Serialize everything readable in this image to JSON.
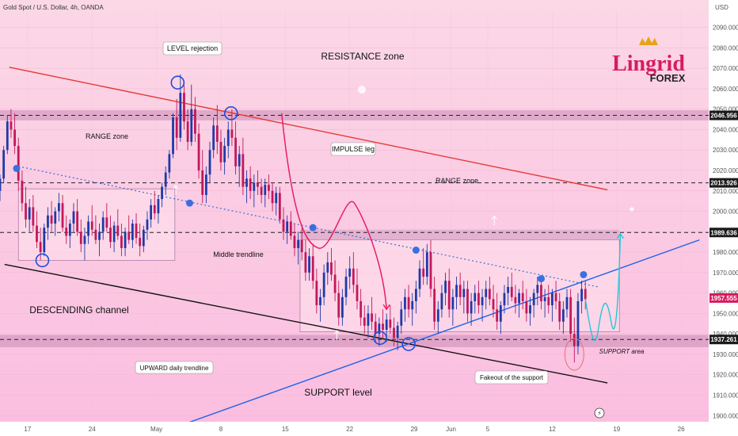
{
  "header": {
    "symbol_title": "Gold Spot / U.S. Dollar, 4h, OANDA",
    "currency": "USD"
  },
  "brand": {
    "name": "Lingrid",
    "sub": "FOREX",
    "crown_color": "#e8a317",
    "color": "#d81b60"
  },
  "colors": {
    "bull": "#1e3aa8",
    "bear": "#c2185b",
    "resistance": "#e53935",
    "upward": "#1e63e9",
    "descending": "#111111",
    "middle": "#3b6fd8",
    "impulse": "#e91e63",
    "projection": "#26c6da"
  },
  "chart_data": {
    "type": "candlestick",
    "symbol": "XAUUSD",
    "timeframe": "4h",
    "y_axis": {
      "ticks": [
        2090,
        2080,
        2070,
        2060,
        2050,
        2040,
        2030,
        2020,
        2010,
        2000,
        1990,
        1980,
        1970,
        1960,
        1950,
        1940,
        1930,
        1920,
        1910,
        1900
      ],
      "tick_labels": [
        "2090.000",
        "2080.000",
        "2070.000",
        "2060.000",
        "2050.000",
        "2040.000",
        "2030.000",
        "2020.000",
        "2010.000",
        "2000.000",
        "1990.000",
        "1980.000",
        "1970.000",
        "1960.000",
        "1950.000",
        "1940.000",
        "1930.000",
        "1920.000",
        "1910.000",
        "1900.000"
      ],
      "range": [
        1897,
        2098
      ]
    },
    "x_axis": {
      "ticks": [
        {
          "label": "17",
          "x": 17
        },
        {
          "label": "24",
          "x": 24
        },
        {
          "label": "May",
          "x": 31
        },
        {
          "label": "8",
          "x": 38
        },
        {
          "label": "15",
          "x": 45
        },
        {
          "label": "22",
          "x": 52
        },
        {
          "label": "29",
          "x": 59
        },
        {
          "label": "Jun",
          "x": 63
        },
        {
          "label": "5",
          "x": 67
        },
        {
          "label": "12",
          "x": 74
        },
        {
          "label": "19",
          "x": 81
        },
        {
          "label": "26",
          "x": 88
        }
      ],
      "range": [
        14,
        91
      ]
    },
    "price_tags": [
      {
        "value": 2046.956,
        "label": "2046.956",
        "style": "dark"
      },
      {
        "value": 2013.926,
        "label": "2013.926",
        "style": "dark"
      },
      {
        "value": 1989.636,
        "label": "1989.636",
        "style": "dark"
      },
      {
        "value": 1957.555,
        "label": "1957.555",
        "style": "current"
      },
      {
        "value": 1937.261,
        "label": "1937.261",
        "style": "dark"
      }
    ],
    "h_levels": [
      2046.956,
      2013.926,
      1989.636,
      1937.261
    ],
    "zones": [
      {
        "name": "resistance-band",
        "x0": 14,
        "x1": 91,
        "y0": 2044.5,
        "y1": 2049.5
      },
      {
        "name": "support-band",
        "x0": 14,
        "x1": 91,
        "y0": 1933.5,
        "y1": 1939.5
      },
      {
        "name": "range-box-1",
        "x0": 16,
        "x1": 33,
        "y0": 1976,
        "y1": 2011
      },
      {
        "name": "range-box-2",
        "x0": 46.6,
        "x1": 81.3,
        "y0": 1941,
        "y1": 1986
      },
      {
        "name": "range-top-strip",
        "x0": 46.6,
        "x1": 81.3,
        "y0": 1986,
        "y1": 1991
      }
    ],
    "lines": [
      {
        "name": "resistance-line",
        "x0": 15,
        "y0": 2070.5,
        "x1": 80,
        "y1": 2010.5,
        "color": "resistance"
      },
      {
        "name": "descending-channel-line",
        "x0": 14.5,
        "y0": 1974,
        "x1": 80,
        "y1": 1916,
        "color": "descending"
      },
      {
        "name": "upward-trendline",
        "x0": 31,
        "y0": 1891,
        "x1": 90,
        "y1": 1986,
        "color": "upward"
      },
      {
        "name": "middle-trendline",
        "x0": 16,
        "y0": 2022,
        "x1": 79,
        "y1": 1963,
        "color": "middle",
        "dash": true
      }
    ],
    "candles": [
      [
        14.0,
        2010,
        2018,
        2005,
        2016
      ],
      [
        14.4,
        2016,
        2032,
        2014,
        2030
      ],
      [
        14.8,
        2030,
        2047,
        2028,
        2044
      ],
      [
        15.2,
        2044,
        2050,
        2036,
        2040
      ],
      [
        15.6,
        2040,
        2048,
        2028,
        2032
      ],
      [
        16.0,
        2032,
        2036,
        2010,
        2015
      ],
      [
        16.4,
        2015,
        2020,
        2000,
        2004
      ],
      [
        16.8,
        2004,
        2012,
        1992,
        1996
      ],
      [
        17.2,
        1996,
        2006,
        1990,
        2002
      ],
      [
        17.6,
        2002,
        2008,
        1990,
        1993
      ],
      [
        18.0,
        1993,
        2000,
        1982,
        1985
      ],
      [
        18.4,
        1985,
        1992,
        1976,
        1980
      ],
      [
        18.8,
        1980,
        1994,
        1978,
        1992
      ],
      [
        19.2,
        1992,
        2002,
        1986,
        1998
      ],
      [
        19.6,
        1998,
        2005,
        1990,
        1994
      ],
      [
        20.0,
        1994,
        2002,
        1988,
        2000
      ],
      [
        20.4,
        2000,
        2009,
        1995,
        2004
      ],
      [
        20.8,
        2004,
        2008,
        1990,
        1992
      ],
      [
        21.2,
        1992,
        1998,
        1984,
        1988
      ],
      [
        21.6,
        1988,
        1996,
        1982,
        1994
      ],
      [
        22.0,
        1994,
        2004,
        1990,
        2000
      ],
      [
        22.4,
        2000,
        2006,
        1988,
        1990
      ],
      [
        22.8,
        1990,
        1996,
        1980,
        1984
      ],
      [
        23.2,
        1984,
        1992,
        1976,
        1988
      ],
      [
        23.6,
        1988,
        1998,
        1984,
        1995
      ],
      [
        24.0,
        1995,
        2003,
        1988,
        1991
      ],
      [
        24.4,
        1991,
        1998,
        1984,
        1986
      ],
      [
        24.8,
        1986,
        1994,
        1978,
        1990
      ],
      [
        25.2,
        1990,
        2000,
        1986,
        1997
      ],
      [
        25.6,
        1997,
        2004,
        1990,
        1992
      ],
      [
        26.0,
        1992,
        1998,
        1982,
        1985
      ],
      [
        26.4,
        1985,
        1995,
        1980,
        1993
      ],
      [
        26.8,
        1993,
        2001,
        1986,
        1988
      ],
      [
        27.2,
        1988,
        1994,
        1978,
        1982
      ],
      [
        27.6,
        1982,
        1992,
        1978,
        1990
      ],
      [
        28.0,
        1990,
        1998,
        1984,
        1986
      ],
      [
        28.4,
        1986,
        1996,
        1982,
        1994
      ],
      [
        28.8,
        1994,
        1999,
        1984,
        1987
      ],
      [
        29.2,
        1987,
        1994,
        1978,
        1983
      ],
      [
        29.6,
        1983,
        1993,
        1980,
        1991
      ],
      [
        30.0,
        1991,
        2000,
        1986,
        1996
      ],
      [
        30.4,
        1996,
        2006,
        1992,
        2003
      ],
      [
        30.8,
        2003,
        2010,
        1996,
        1999
      ],
      [
        31.2,
        1999,
        2008,
        1994,
        2006
      ],
      [
        31.6,
        2006,
        2014,
        2002,
        2012
      ],
      [
        32.0,
        2012,
        2022,
        2008,
        2019
      ],
      [
        32.4,
        2019,
        2030,
        2016,
        2028
      ],
      [
        32.8,
        2028,
        2048,
        2026,
        2046
      ],
      [
        33.2,
        2046,
        2055,
        2030,
        2036
      ],
      [
        33.6,
        2036,
        2067,
        2034,
        2058
      ],
      [
        34.0,
        2058,
        2064,
        2040,
        2044
      ],
      [
        34.4,
        2044,
        2050,
        2030,
        2034
      ],
      [
        34.8,
        2034,
        2062,
        2032,
        2050
      ],
      [
        35.2,
        2050,
        2056,
        2034,
        2038
      ],
      [
        35.6,
        2038,
        2043,
        2016,
        2020
      ],
      [
        36.0,
        2020,
        2030,
        2004,
        2008
      ],
      [
        36.4,
        2008,
        2022,
        2004,
        2018
      ],
      [
        36.8,
        2018,
        2034,
        2014,
        2030
      ],
      [
        37.2,
        2030,
        2046,
        2026,
        2042
      ],
      [
        37.6,
        2042,
        2052,
        2028,
        2034
      ],
      [
        38.0,
        2034,
        2040,
        2020,
        2024
      ],
      [
        38.4,
        2024,
        2036,
        2018,
        2032
      ],
      [
        38.8,
        2032,
        2044,
        2026,
        2040
      ],
      [
        39.2,
        2040,
        2050,
        2032,
        2036
      ],
      [
        39.6,
        2036,
        2044,
        2018,
        2022
      ],
      [
        40.0,
        2022,
        2032,
        2012,
        2028
      ],
      [
        40.4,
        2028,
        2036,
        2008,
        2012
      ],
      [
        40.8,
        2012,
        2020,
        2004,
        2016
      ],
      [
        41.2,
        2016,
        2022,
        2006,
        2010
      ],
      [
        41.6,
        2010,
        2018,
        2002,
        2014
      ],
      [
        42.0,
        2014,
        2020,
        2008,
        2012
      ],
      [
        42.4,
        2012,
        2016,
        2004,
        2008
      ],
      [
        42.8,
        2008,
        2016,
        2002,
        2013
      ],
      [
        43.2,
        2013,
        2018,
        2006,
        2010
      ],
      [
        43.6,
        2010,
        2014,
        2000,
        2004
      ],
      [
        44.0,
        2004,
        2012,
        1998,
        2009
      ],
      [
        44.4,
        2009,
        2012,
        1994,
        1996
      ],
      [
        44.8,
        1996,
        2002,
        1986,
        1990
      ],
      [
        45.2,
        1990,
        1998,
        1984,
        1995
      ],
      [
        45.6,
        1995,
        2000,
        1986,
        1988
      ],
      [
        46.0,
        1988,
        1994,
        1978,
        1982
      ],
      [
        46.4,
        1982,
        1990,
        1974,
        1986
      ],
      [
        46.8,
        1986,
        1992,
        1976,
        1980
      ],
      [
        47.2,
        1980,
        1986,
        1966,
        1970
      ],
      [
        47.6,
        1970,
        1982,
        1966,
        1978
      ],
      [
        48.0,
        1978,
        1984,
        1962,
        1966
      ],
      [
        48.4,
        1966,
        1972,
        1950,
        1954
      ],
      [
        48.8,
        1954,
        1962,
        1946,
        1958
      ],
      [
        49.2,
        1958,
        1974,
        1954,
        1970
      ],
      [
        49.6,
        1970,
        1980,
        1964,
        1975
      ],
      [
        50.0,
        1975,
        1982,
        1966,
        1969
      ],
      [
        50.4,
        1969,
        1976,
        1956,
        1960
      ],
      [
        50.8,
        1960,
        1966,
        1944,
        1948
      ],
      [
        51.2,
        1948,
        1962,
        1944,
        1958
      ],
      [
        51.6,
        1958,
        1972,
        1954,
        1968
      ],
      [
        52.0,
        1968,
        1978,
        1962,
        1972
      ],
      [
        52.4,
        1972,
        1980,
        1960,
        1964
      ],
      [
        52.8,
        1964,
        1972,
        1952,
        1956
      ],
      [
        53.2,
        1956,
        1962,
        1944,
        1948
      ],
      [
        53.6,
        1948,
        1954,
        1940,
        1944
      ],
      [
        54.0,
        1944,
        1954,
        1938,
        1950
      ],
      [
        54.4,
        1950,
        1958,
        1942,
        1946
      ],
      [
        54.8,
        1946,
        1950,
        1936,
        1940
      ],
      [
        55.2,
        1940,
        1948,
        1934,
        1945
      ],
      [
        55.6,
        1945,
        1952,
        1938,
        1942
      ],
      [
        56.0,
        1942,
        1950,
        1936,
        1947
      ],
      [
        56.4,
        1947,
        1954,
        1940,
        1943
      ],
      [
        56.8,
        1943,
        1948,
        1934,
        1938
      ],
      [
        57.2,
        1938,
        1946,
        1932,
        1944
      ],
      [
        57.6,
        1944,
        1956,
        1940,
        1952
      ],
      [
        58.0,
        1952,
        1962,
        1946,
        1958
      ],
      [
        58.4,
        1958,
        1964,
        1948,
        1952
      ],
      [
        58.8,
        1952,
        1960,
        1944,
        1956
      ],
      [
        59.2,
        1956,
        1966,
        1950,
        1962
      ],
      [
        59.6,
        1962,
        1976,
        1958,
        1972
      ],
      [
        60.0,
        1972,
        1982,
        1964,
        1968
      ],
      [
        60.4,
        1968,
        1984,
        1964,
        1980
      ],
      [
        60.8,
        1980,
        1986,
        1958,
        1962
      ],
      [
        61.2,
        1962,
        1968,
        1942,
        1946
      ],
      [
        61.6,
        1946,
        1956,
        1940,
        1952
      ],
      [
        62.0,
        1952,
        1964,
        1948,
        1960
      ],
      [
        62.4,
        1960,
        1970,
        1954,
        1966
      ],
      [
        62.8,
        1966,
        1972,
        1948,
        1952
      ],
      [
        63.2,
        1952,
        1962,
        1944,
        1958
      ],
      [
        63.6,
        1958,
        1968,
        1952,
        1964
      ],
      [
        64.0,
        1964,
        1970,
        1954,
        1958
      ],
      [
        64.4,
        1958,
        1966,
        1950,
        1962
      ],
      [
        64.8,
        1962,
        1966,
        1946,
        1950
      ],
      [
        65.2,
        1950,
        1960,
        1944,
        1956
      ],
      [
        65.6,
        1956,
        1964,
        1950,
        1960
      ],
      [
        66.0,
        1960,
        1966,
        1950,
        1954
      ],
      [
        66.4,
        1954,
        1962,
        1946,
        1958
      ],
      [
        66.8,
        1958,
        1966,
        1952,
        1962
      ],
      [
        67.2,
        1962,
        1968,
        1954,
        1957
      ],
      [
        67.6,
        1957,
        1964,
        1948,
        1952
      ],
      [
        68.0,
        1952,
        1960,
        1942,
        1946
      ],
      [
        68.4,
        1946,
        1956,
        1940,
        1954
      ],
      [
        68.8,
        1954,
        1964,
        1950,
        1960
      ],
      [
        69.2,
        1960,
        1968,
        1954,
        1963
      ],
      [
        69.6,
        1963,
        1970,
        1956,
        1958
      ],
      [
        70.0,
        1958,
        1964,
        1950,
        1955
      ],
      [
        70.4,
        1955,
        1962,
        1948,
        1960
      ],
      [
        70.8,
        1960,
        1966,
        1952,
        1956
      ],
      [
        71.2,
        1956,
        1962,
        1946,
        1950
      ],
      [
        71.6,
        1950,
        1958,
        1944,
        1954
      ],
      [
        72.0,
        1954,
        1962,
        1948,
        1960
      ],
      [
        72.4,
        1960,
        1968,
        1954,
        1964
      ],
      [
        72.8,
        1964,
        1968,
        1952,
        1956
      ],
      [
        73.2,
        1956,
        1962,
        1948,
        1958
      ],
      [
        73.6,
        1958,
        1964,
        1950,
        1954
      ],
      [
        74.0,
        1954,
        1962,
        1946,
        1960
      ],
      [
        74.4,
        1960,
        1966,
        1952,
        1956
      ],
      [
        74.8,
        1956,
        1960,
        1942,
        1946
      ],
      [
        75.2,
        1946,
        1956,
        1940,
        1952
      ],
      [
        75.6,
        1952,
        1962,
        1948,
        1958
      ],
      [
        76.0,
        1958,
        1962,
        1936,
        1940
      ],
      [
        76.4,
        1940,
        1948,
        1926,
        1934
      ],
      [
        76.8,
        1934,
        1960,
        1930,
        1956
      ],
      [
        77.2,
        1956,
        1966,
        1950,
        1962
      ],
      [
        77.6,
        1962,
        1966,
        1952,
        1957
      ]
    ],
    "markers": [
      {
        "name": "circle-level-rejection",
        "x": 33.3,
        "y": 2063
      },
      {
        "name": "circle-resistance-touch",
        "x": 39.1,
        "y": 2048
      },
      {
        "name": "circle-channel-low",
        "x": 18.6,
        "y": 1976
      },
      {
        "name": "circle-support-1",
        "x": 55.3,
        "y": 1938
      },
      {
        "name": "circle-support-2",
        "x": 58.4,
        "y": 1935
      }
    ],
    "dots": [
      {
        "x": 15.8,
        "y": 2021
      },
      {
        "x": 34.6,
        "y": 2004
      },
      {
        "x": 48.0,
        "y": 1992
      },
      {
        "x": 59.2,
        "y": 1981
      },
      {
        "x": 72.8,
        "y": 1967
      },
      {
        "x": 77.4,
        "y": 1969
      }
    ],
    "labels": {
      "level_rejection": "LEVEL rejection",
      "resistance_zone": "RESISTANCE zone",
      "range_zone_left": "RANGE zone",
      "range_zone_right": "RANGE zone",
      "impulse_leg": "IMPULSE leg",
      "middle_trendline": "Middle trendline",
      "descending_channel": "DESCENDING channel",
      "upward_daily_trendline": "UPWARD daily trendline",
      "support_level": "SUPPORT level",
      "fakeout": "Fakeout of the support",
      "support_area": "SUPPORT area"
    }
  }
}
